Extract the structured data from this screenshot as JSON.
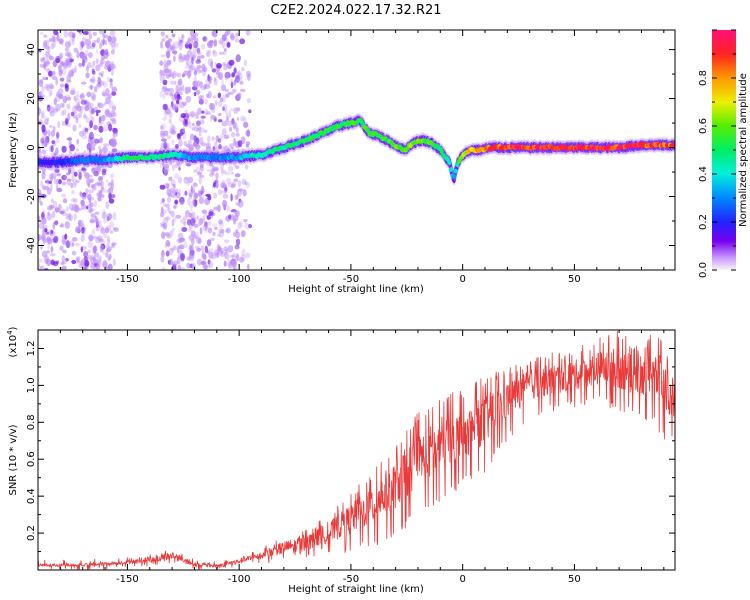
{
  "figure": {
    "title": "C2E2.2024.022.17.32.R21"
  },
  "chart_data": [
    {
      "type": "heatmap",
      "name": "spectrogram",
      "xlabel": "Height of straight line (km)",
      "ylabel": "Frequency (Hz)",
      "xlim": [
        -190,
        95
      ],
      "ylim": [
        -50,
        48
      ],
      "x_ticks": [
        -150,
        -100,
        -50,
        0,
        50
      ],
      "y_ticks": [
        -40,
        -20,
        0,
        20,
        40
      ],
      "grid": false,
      "colorbar": {
        "label": "Normalized spectral amplitude",
        "range": [
          0,
          1
        ],
        "ticks": [
          "0.0",
          "0.2",
          "0.4",
          "0.6",
          "0.8"
        ]
      },
      "ridge": {
        "x": [
          -190,
          -180,
          -170,
          -160,
          -150,
          -140,
          -130,
          -120,
          -110,
          -100,
          -90,
          -80,
          -70,
          -60,
          -55,
          -50,
          -46,
          -42,
          -38,
          -34,
          -30,
          -26,
          -22,
          -18,
          -14,
          -10,
          -6,
          -4,
          -2,
          0,
          4,
          8,
          12,
          16,
          20,
          30,
          40,
          50,
          60,
          70,
          80,
          90,
          95
        ],
        "y": [
          -6,
          -6,
          -5,
          -5,
          -4,
          -4,
          -3,
          -4,
          -4,
          -4,
          -3,
          0,
          3,
          7,
          9,
          10,
          11,
          6,
          5,
          3,
          1,
          -1,
          2,
          3,
          2,
          -1,
          -6,
          -13,
          -6,
          -3,
          -1,
          -1,
          0,
          0,
          0,
          0,
          0,
          0,
          0,
          0,
          1,
          1,
          1
        ],
        "amplitude": [
          0.2,
          0.2,
          0.3,
          0.3,
          0.5,
          0.5,
          0.45,
          0.3,
          0.3,
          0.35,
          0.45,
          0.5,
          0.5,
          0.55,
          0.55,
          0.55,
          0.55,
          0.55,
          0.55,
          0.55,
          0.6,
          0.6,
          0.6,
          0.6,
          0.6,
          0.5,
          0.4,
          0.35,
          0.5,
          0.7,
          0.75,
          0.8,
          0.85,
          0.9,
          0.95,
          0.95,
          0.95,
          0.95,
          0.95,
          0.95,
          0.95,
          0.9,
          0.9
        ]
      },
      "noise_bands": [
        {
          "x_from": -190,
          "x_to": -155,
          "intensity": 0.12
        },
        {
          "x_from": -135,
          "x_to": -100,
          "intensity": 0.12
        },
        {
          "x_from": -100,
          "x_to": -95,
          "intensity": 0.05
        }
      ]
    },
    {
      "type": "line",
      "name": "snr",
      "xlabel": "Height of straight line (km)",
      "ylabel": "SNR (10 * v/v)",
      "y_multiplier": "(x10",
      "y_multiplier_exp": "4",
      "y_multiplier_close": ")",
      "xlim": [
        -190,
        95
      ],
      "ylim": [
        0,
        1.3
      ],
      "x_ticks": [
        -150,
        -100,
        -50,
        0,
        50
      ],
      "y_ticks": [
        "0.2",
        "0.4",
        "0.6",
        "0.8",
        "1.0",
        "1.2"
      ],
      "grid": false,
      "color": "#e83a3a",
      "envelope": {
        "x": [
          -190,
          -170,
          -150,
          -135,
          -130,
          -120,
          -110,
          -100,
          -90,
          -80,
          -70,
          -60,
          -50,
          -40,
          -30,
          -20,
          -10,
          0,
          10,
          20,
          30,
          40,
          50,
          60,
          70,
          80,
          85,
          90,
          95
        ],
        "y_low": [
          0.01,
          0.01,
          0.02,
          0.02,
          0.03,
          0.01,
          0.0,
          0.02,
          0.03,
          0.05,
          0.06,
          0.08,
          0.1,
          0.12,
          0.18,
          0.28,
          0.35,
          0.45,
          0.52,
          0.7,
          0.82,
          0.85,
          0.88,
          0.9,
          0.85,
          0.82,
          0.8,
          0.7,
          0.72
        ],
        "y_high": [
          0.04,
          0.04,
          0.06,
          0.1,
          0.12,
          0.05,
          0.04,
          0.07,
          0.12,
          0.18,
          0.22,
          0.3,
          0.42,
          0.55,
          0.7,
          0.85,
          0.95,
          0.97,
          1.05,
          1.1,
          1.15,
          1.18,
          1.2,
          1.25,
          1.3,
          1.2,
          1.3,
          1.25,
          1.0
        ]
      }
    }
  ]
}
